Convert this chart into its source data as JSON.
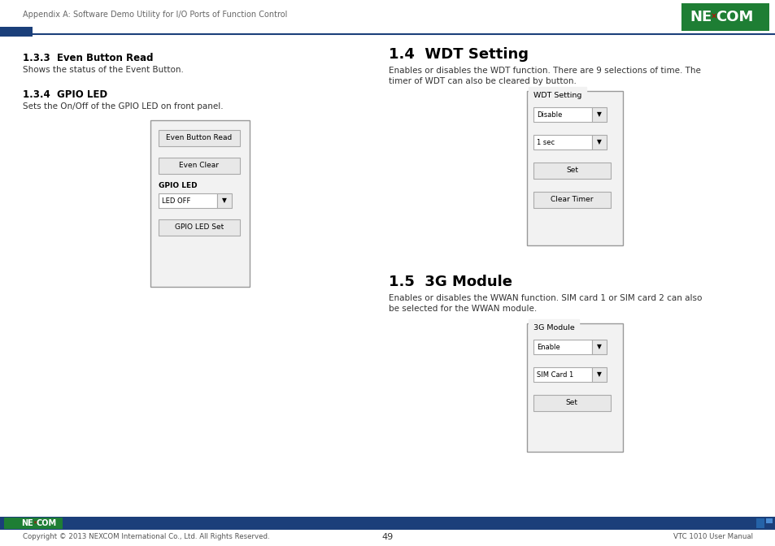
{
  "page_bg": "#ffffff",
  "header_text": "Appendix A: Software Demo Utility for I/O Ports of Function Control",
  "header_text_color": "#666666",
  "header_text_size": 7.0,
  "divider_color": "#1b3f7a",
  "divider_blue_rect_color": "#1b3f7a",
  "section_133_title": "1.3.3  Even Button Read",
  "section_133_body": "Shows the status of the Event Button.",
  "section_134_title": "1.3.4  GPIO LED",
  "section_134_body": "Sets the On/Off of the GPIO LED on front panel.",
  "section_14_title": "1.4  WDT Setting",
  "section_14_body": "Enables or disables the WDT function. There are 9 selections of time. The\ntimer of WDT can also be cleared by button.",
  "section_15_title": "1.5  3G Module",
  "section_15_body": "Enables or disables the WWAN function. SIM card 1 or SIM card 2 can also\nbe selected for the WWAN module.",
  "footer_bar_color": "#1b3f7a",
  "footer_copyright": "Copyright © 2013 NEXCOM International Co., Ltd. All Rights Reserved.",
  "footer_page": "49",
  "footer_right": "VTC 1010 User Manual",
  "footer_text_color": "#555555",
  "title_bold_size": 8.5,
  "section_big_title_size": 13,
  "body_text_size": 7.5,
  "panel_bg": "#f2f2f2",
  "panel_border": "#999999",
  "button_bg": "#e8e8e8",
  "button_border": "#aaaaaa",
  "dropdown_bg": "#ffffff",
  "nexcom_green": "#1e7e34",
  "nexcom_red": "#cc0000"
}
